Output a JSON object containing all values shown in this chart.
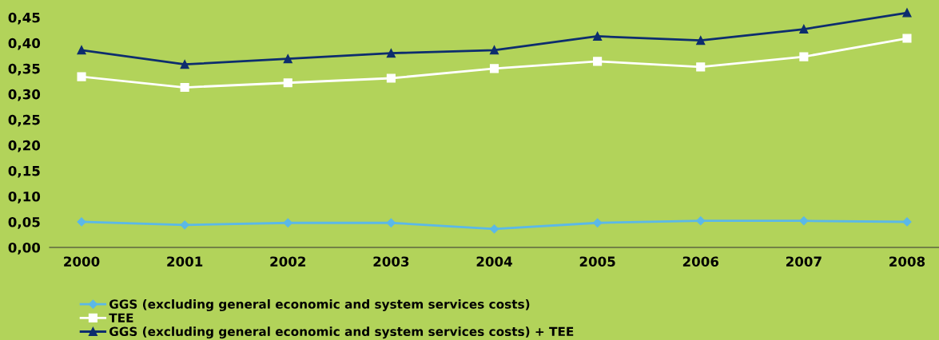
{
  "chart_data": {
    "type": "line",
    "categories": [
      "2000",
      "2001",
      "2002",
      "2003",
      "2004",
      "2005",
      "2006",
      "2007",
      "2008"
    ],
    "series": [
      {
        "name": "GGS (excluding general economic and system services costs)",
        "color": "#5bb8e8",
        "marker": "diamond",
        "values": [
          0.05,
          0.044,
          0.048,
          0.048,
          0.036,
          0.048,
          0.052,
          0.052,
          0.05
        ]
      },
      {
        "name": "TEE",
        "color": "#ffffff",
        "marker": "square",
        "values": [
          0.334,
          0.313,
          0.322,
          0.331,
          0.35,
          0.364,
          0.353,
          0.373,
          0.409
        ]
      },
      {
        "name": "GGS (excluding general economic and system services costs) + TEE",
        "color": "#0d2d6e",
        "marker": "triangle",
        "values": [
          0.386,
          0.358,
          0.369,
          0.38,
          0.386,
          0.413,
          0.405,
          0.427,
          0.459
        ]
      }
    ],
    "ylim": [
      0,
      0.484
    ],
    "yticks": [
      {
        "value": 0,
        "label": "0,00"
      },
      {
        "value": 0.05,
        "label": "0,05"
      },
      {
        "value": 0.1,
        "label": "0,10"
      },
      {
        "value": 0.15,
        "label": "0,15"
      },
      {
        "value": 0.2,
        "label": "0,20"
      },
      {
        "value": 0.25,
        "label": "0,25"
      },
      {
        "value": 0.3,
        "label": "0,30"
      },
      {
        "value": 0.35,
        "label": "0,35"
      },
      {
        "value": 0.4,
        "label": "0,40"
      },
      {
        "value": 0.45,
        "label": "0,45"
      }
    ],
    "grid": false,
    "legend": "bottom left",
    "line_style": "solid"
  }
}
